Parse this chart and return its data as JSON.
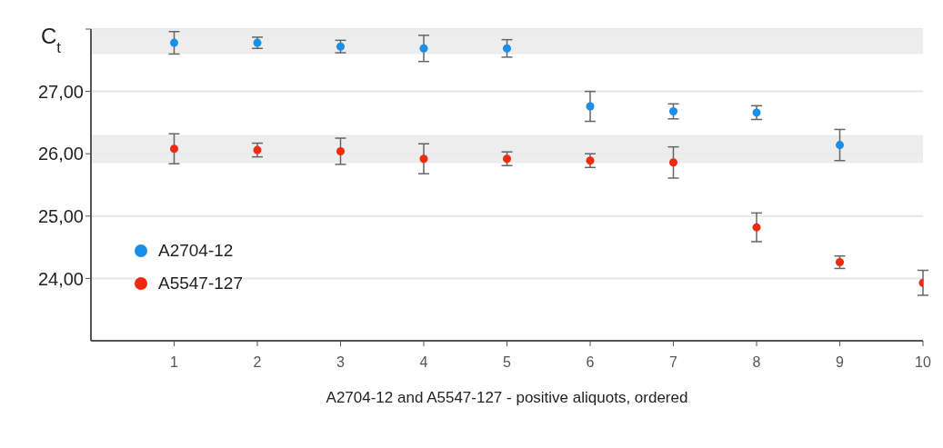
{
  "chart_data": {
    "type": "scatter",
    "ylabel": "C$_{t}$",
    "xlabel": "A2704-12 and A5547-127 - positive aliquots, ordered",
    "x": [
      1,
      2,
      3,
      4,
      5,
      6,
      7,
      8,
      9,
      10
    ],
    "series": [
      {
        "name": "A2704-12",
        "color": "#1a8fe8",
        "values": [
          27.78,
          27.78,
          27.72,
          27.69,
          27.69,
          26.76,
          26.68,
          26.66,
          26.14,
          null
        ],
        "errors": [
          0.18,
          0.09,
          0.1,
          0.21,
          0.14,
          0.24,
          0.12,
          0.11,
          0.25,
          null
        ]
      },
      {
        "name": "A5547-127",
        "color": "#f02a10",
        "values": [
          26.08,
          26.06,
          26.04,
          25.92,
          25.92,
          25.89,
          25.86,
          24.82,
          24.26,
          23.93
        ],
        "errors": [
          0.24,
          0.11,
          0.21,
          0.24,
          0.11,
          0.11,
          0.25,
          0.23,
          0.1,
          0.2
        ]
      }
    ],
    "xlim": [
      0,
      10
    ],
    "xticks": [
      1,
      2,
      3,
      4,
      5,
      6,
      7,
      8,
      9,
      10
    ],
    "ylim": [
      23,
      28
    ],
    "yticks": [
      {
        "value": 24,
        "label": "24,00"
      },
      {
        "value": 25,
        "label": "25,00"
      },
      {
        "value": 26,
        "label": "26,00"
      },
      {
        "value": 27,
        "label": "27,00"
      },
      {
        "value": 28,
        "label": null
      }
    ],
    "bands": [
      {
        "axis": "y",
        "from": 27.6,
        "to": 28,
        "color": "#ebebeb"
      },
      {
        "axis": "y",
        "from": 25.85,
        "to": 26.3,
        "color": "#ebebeb"
      }
    ],
    "grid": "y",
    "legend": "left",
    "marker": "circle"
  }
}
